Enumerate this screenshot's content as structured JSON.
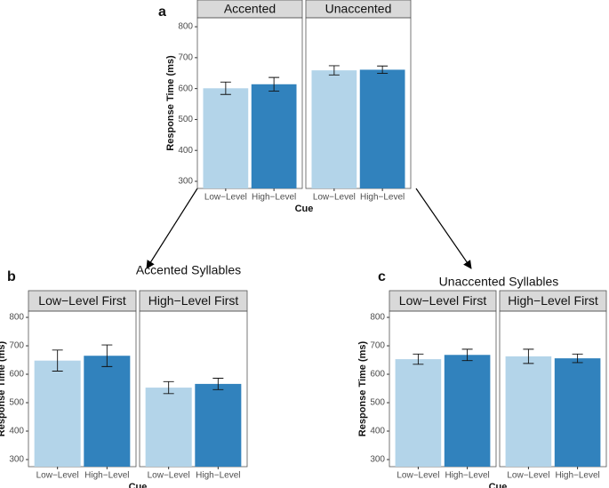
{
  "chart_data": [
    {
      "type": "bar",
      "label": "a",
      "xlabel": "Cue",
      "ylabel": "Response Time (ms)",
      "ylim": [
        277,
        829
      ],
      "yticks": [
        300,
        400,
        500,
        600,
        700,
        800
      ],
      "categories": [
        "Low−Level",
        "High−Level"
      ],
      "colors": [
        "#b3d4e9",
        "#3182bd"
      ],
      "facets": [
        {
          "title": "Accented",
          "values": [
            601,
            614
          ],
          "errors": [
            20,
            22
          ]
        },
        {
          "title": "Unaccented",
          "values": [
            659,
            661
          ],
          "errors": [
            15,
            12
          ]
        }
      ]
    },
    {
      "type": "bar",
      "label": "b",
      "title": "Accented Syllables",
      "xlabel": "Cue",
      "ylabel": "Response Time (ms)",
      "ylim": [
        275,
        822
      ],
      "yticks": [
        300,
        400,
        500,
        600,
        700,
        800
      ],
      "categories": [
        "Low−Level",
        "High−Level"
      ],
      "colors": [
        "#b3d4e9",
        "#3182bd"
      ],
      "facets": [
        {
          "title": "Low−Level First",
          "values": [
            648,
            665
          ],
          "errors": [
            37,
            38
          ]
        },
        {
          "title": "High−Level First",
          "values": [
            553,
            566
          ],
          "errors": [
            21,
            20
          ]
        }
      ]
    },
    {
      "type": "bar",
      "label": "c",
      "title": "Unaccented Syllables",
      "xlabel": "Cue",
      "ylabel": "Response Time (ms)",
      "ylim": [
        275,
        822
      ],
      "yticks": [
        300,
        400,
        500,
        600,
        700,
        800
      ],
      "categories": [
        "Low−Level",
        "High−Level"
      ],
      "colors": [
        "#b3d4e9",
        "#3182bd"
      ],
      "facets": [
        {
          "title": "Low−Level First",
          "values": [
            653,
            668
          ],
          "errors": [
            18,
            20
          ]
        },
        {
          "title": "High−Level First",
          "values": [
            663,
            656
          ],
          "errors": [
            25,
            15
          ]
        }
      ]
    }
  ]
}
